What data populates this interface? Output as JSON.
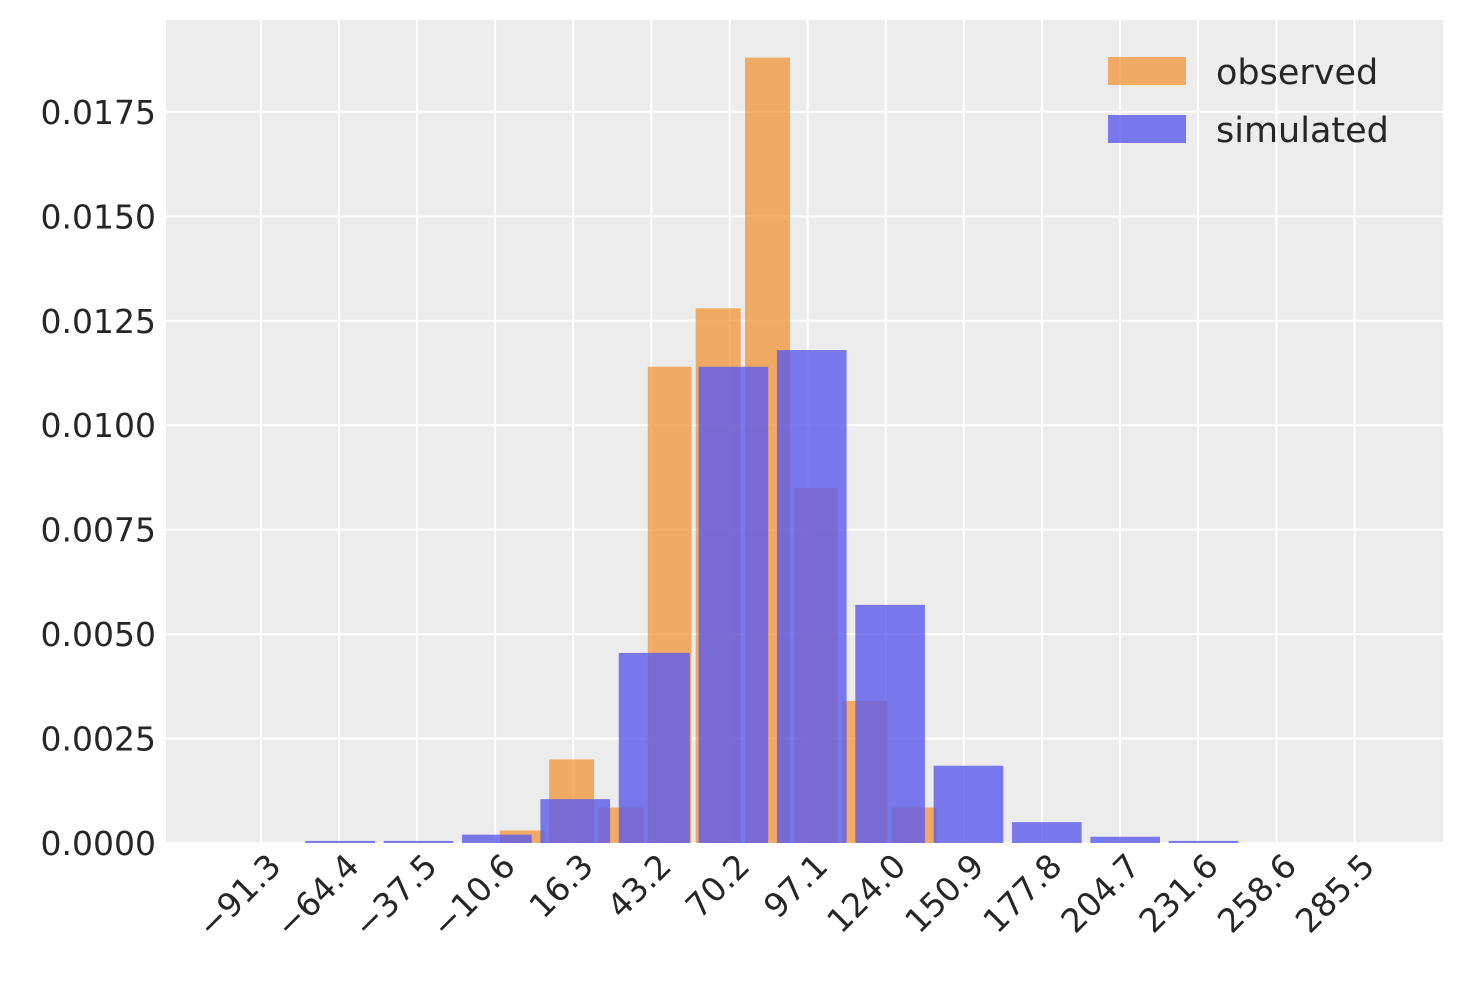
{
  "chart_data": {
    "type": "bar",
    "title": "",
    "xlabel": "",
    "ylabel": "",
    "x_ticks": [
      "−91.3",
      "−64.4",
      "−37.5",
      "−10.6",
      "16.3",
      "43.2",
      "70.2",
      "97.1",
      "124.0",
      "150.9",
      "177.8",
      "204.7",
      "231.6",
      "258.6",
      "285.5"
    ],
    "x_tick_values": [
      -91.3,
      -64.4,
      -37.5,
      -10.6,
      16.3,
      43.2,
      70.2,
      97.1,
      124.0,
      150.9,
      177.8,
      204.7,
      231.6,
      258.6,
      285.5
    ],
    "y_ticks": [
      "0.0000",
      "0.0025",
      "0.0050",
      "0.0075",
      "0.0100",
      "0.0125",
      "0.0150",
      "0.0175"
    ],
    "y_tick_values": [
      0,
      0.0025,
      0.005,
      0.0075,
      0.01,
      0.0125,
      0.015,
      0.0175
    ],
    "xlim": [
      -124,
      316
    ],
    "ylim": [
      0,
      0.0197
    ],
    "grid": true,
    "legend_position": "top-right",
    "series": [
      {
        "name": "observed",
        "color": "#f28e2b",
        "bars": [
          {
            "x0": -9.0,
            "x1": 6.5,
            "value": 0.0003
          },
          {
            "x0": 8.0,
            "x1": 23.5,
            "value": 0.002
          },
          {
            "x0": 25.0,
            "x1": 40.5,
            "value": 0.00085
          },
          {
            "x0": 42.0,
            "x1": 57.0,
            "value": 0.0114
          },
          {
            "x0": 58.5,
            "x1": 74.0,
            "value": 0.0128
          },
          {
            "x0": 75.5,
            "x1": 91.0,
            "value": 0.0188
          },
          {
            "x0": 92.5,
            "x1": 107.5,
            "value": 0.0085
          },
          {
            "x0": 109.0,
            "x1": 124.5,
            "value": 0.0034
          },
          {
            "x0": 126.0,
            "x1": 141.5,
            "value": 0.00085
          }
        ]
      },
      {
        "name": "simulated",
        "color": "#5b5bec",
        "bars": [
          {
            "x0": -76.0,
            "x1": -52.0,
            "value": 5e-05
          },
          {
            "x0": -49.0,
            "x1": -25.0,
            "value": 5e-05
          },
          {
            "x0": -22.0,
            "x1": 2.0,
            "value": 0.0002
          },
          {
            "x0": 5.0,
            "x1": 29.0,
            "value": 0.00105
          },
          {
            "x0": 32.0,
            "x1": 56.5,
            "value": 0.00455
          },
          {
            "x0": 59.5,
            "x1": 83.5,
            "value": 0.0114
          },
          {
            "x0": 86.5,
            "x1": 110.5,
            "value": 0.0118
          },
          {
            "x0": 113.5,
            "x1": 137.5,
            "value": 0.0057
          },
          {
            "x0": 140.5,
            "x1": 164.5,
            "value": 0.00185
          },
          {
            "x0": 167.5,
            "x1": 191.5,
            "value": 0.0005
          },
          {
            "x0": 194.5,
            "x1": 218.5,
            "value": 0.00015
          },
          {
            "x0": 221.5,
            "x1": 245.5,
            "value": 5e-05
          }
        ]
      }
    ]
  },
  "colors": {
    "plot_background": "#ececec",
    "grid": "#ffffff",
    "text": "#262626"
  }
}
